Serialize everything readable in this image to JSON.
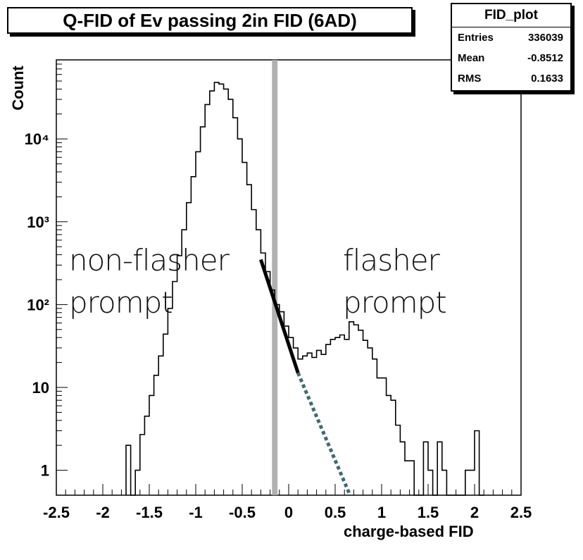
{
  "title": "Q-FID of Ev passing 2in FID (6AD)",
  "stats": {
    "name": "FID_plot",
    "rows": [
      {
        "label": "Entries",
        "value": "336039"
      },
      {
        "label": "Mean",
        "value": "-0.8512"
      },
      {
        "label": "RMS",
        "value": "0.1633"
      }
    ]
  },
  "annotations": {
    "left_line1": "non-flasher",
    "left_line2": "prompt",
    "right_line1": "flasher",
    "right_line2": "prompt"
  },
  "chart_data": {
    "type": "histogram",
    "title": "Q-FID of Ev passing 2in FID (6AD)",
    "xlabel": "charge-based FID",
    "ylabel": "Count",
    "xlim": [
      -2.5,
      2.5
    ],
    "ylim": [
      0.5,
      90000
    ],
    "yscale": "log",
    "grid": false,
    "x_tick_labels": [
      "-2.5",
      "-2",
      "-1.5",
      "-1",
      "-0.5",
      "0",
      "0.5",
      "1",
      "1.5",
      "2",
      "2.5"
    ],
    "y_tick_labels": [
      "1",
      "10",
      "10²",
      "10³",
      "10⁴"
    ],
    "bin_width": 0.05,
    "bins": [
      [
        -1.75,
        2
      ],
      [
        -1.7,
        0.5
      ],
      [
        -1.65,
        1
      ],
      [
        -1.6,
        2.7
      ],
      [
        -1.55,
        4.5
      ],
      [
        -1.5,
        8
      ],
      [
        -1.45,
        14
      ],
      [
        -1.4,
        24
      ],
      [
        -1.35,
        44
      ],
      [
        -1.3,
        90
      ],
      [
        -1.25,
        190
      ],
      [
        -1.2,
        390
      ],
      [
        -1.15,
        800
      ],
      [
        -1.1,
        1700
      ],
      [
        -1.05,
        3500
      ],
      [
        -1.0,
        7000
      ],
      [
        -0.95,
        14000
      ],
      [
        -0.9,
        26000
      ],
      [
        -0.85,
        38000
      ],
      [
        -0.8,
        48000
      ],
      [
        -0.75,
        46000
      ],
      [
        -0.7,
        40000
      ],
      [
        -0.65,
        30000
      ],
      [
        -0.6,
        18000
      ],
      [
        -0.55,
        10000
      ],
      [
        -0.5,
        5200
      ],
      [
        -0.45,
        2800
      ],
      [
        -0.4,
        1400
      ],
      [
        -0.35,
        800
      ],
      [
        -0.3,
        420
      ],
      [
        -0.25,
        250
      ],
      [
        -0.2,
        150
      ],
      [
        -0.15,
        100
      ],
      [
        -0.1,
        82
      ],
      [
        -0.05,
        55
      ],
      [
        0.0,
        40
      ],
      [
        0.05,
        30
      ],
      [
        0.1,
        22
      ],
      [
        0.15,
        24
      ],
      [
        0.2,
        26
      ],
      [
        0.25,
        23
      ],
      [
        0.3,
        28
      ],
      [
        0.35,
        25
      ],
      [
        0.4,
        33
      ],
      [
        0.45,
        38
      ],
      [
        0.5,
        40
      ],
      [
        0.55,
        43
      ],
      [
        0.6,
        38
      ],
      [
        0.65,
        62
      ],
      [
        0.7,
        57
      ],
      [
        0.75,
        49
      ],
      [
        0.8,
        37
      ],
      [
        0.85,
        30
      ],
      [
        0.9,
        22
      ],
      [
        0.95,
        13
      ],
      [
        1.0,
        13
      ],
      [
        1.05,
        8
      ],
      [
        1.1,
        7
      ],
      [
        1.15,
        3.5
      ],
      [
        1.2,
        2.2
      ],
      [
        1.25,
        1.3
      ],
      [
        1.3,
        1.3
      ],
      [
        1.35,
        0.5
      ],
      [
        1.4,
        0.5
      ],
      [
        1.45,
        2.2
      ],
      [
        1.5,
        1
      ],
      [
        1.55,
        0.5
      ],
      [
        1.6,
        2.2
      ],
      [
        1.65,
        1
      ],
      [
        1.7,
        0.5
      ],
      [
        1.75,
        0.5
      ],
      [
        1.8,
        0.5
      ],
      [
        1.85,
        0.5
      ],
      [
        1.9,
        1
      ],
      [
        1.95,
        1
      ],
      [
        2.0,
        3
      ],
      [
        2.05,
        0.5
      ]
    ],
    "cut_band": {
      "xmin": -0.18,
      "xmax": -0.12
    },
    "fit_segment": {
      "x": [
        -0.3,
        0.1
      ],
      "y": [
        350,
        15
      ]
    },
    "fit_extrapolation": {
      "x": [
        0.1,
        0.66
      ],
      "y": [
        15,
        0.5
      ]
    }
  }
}
